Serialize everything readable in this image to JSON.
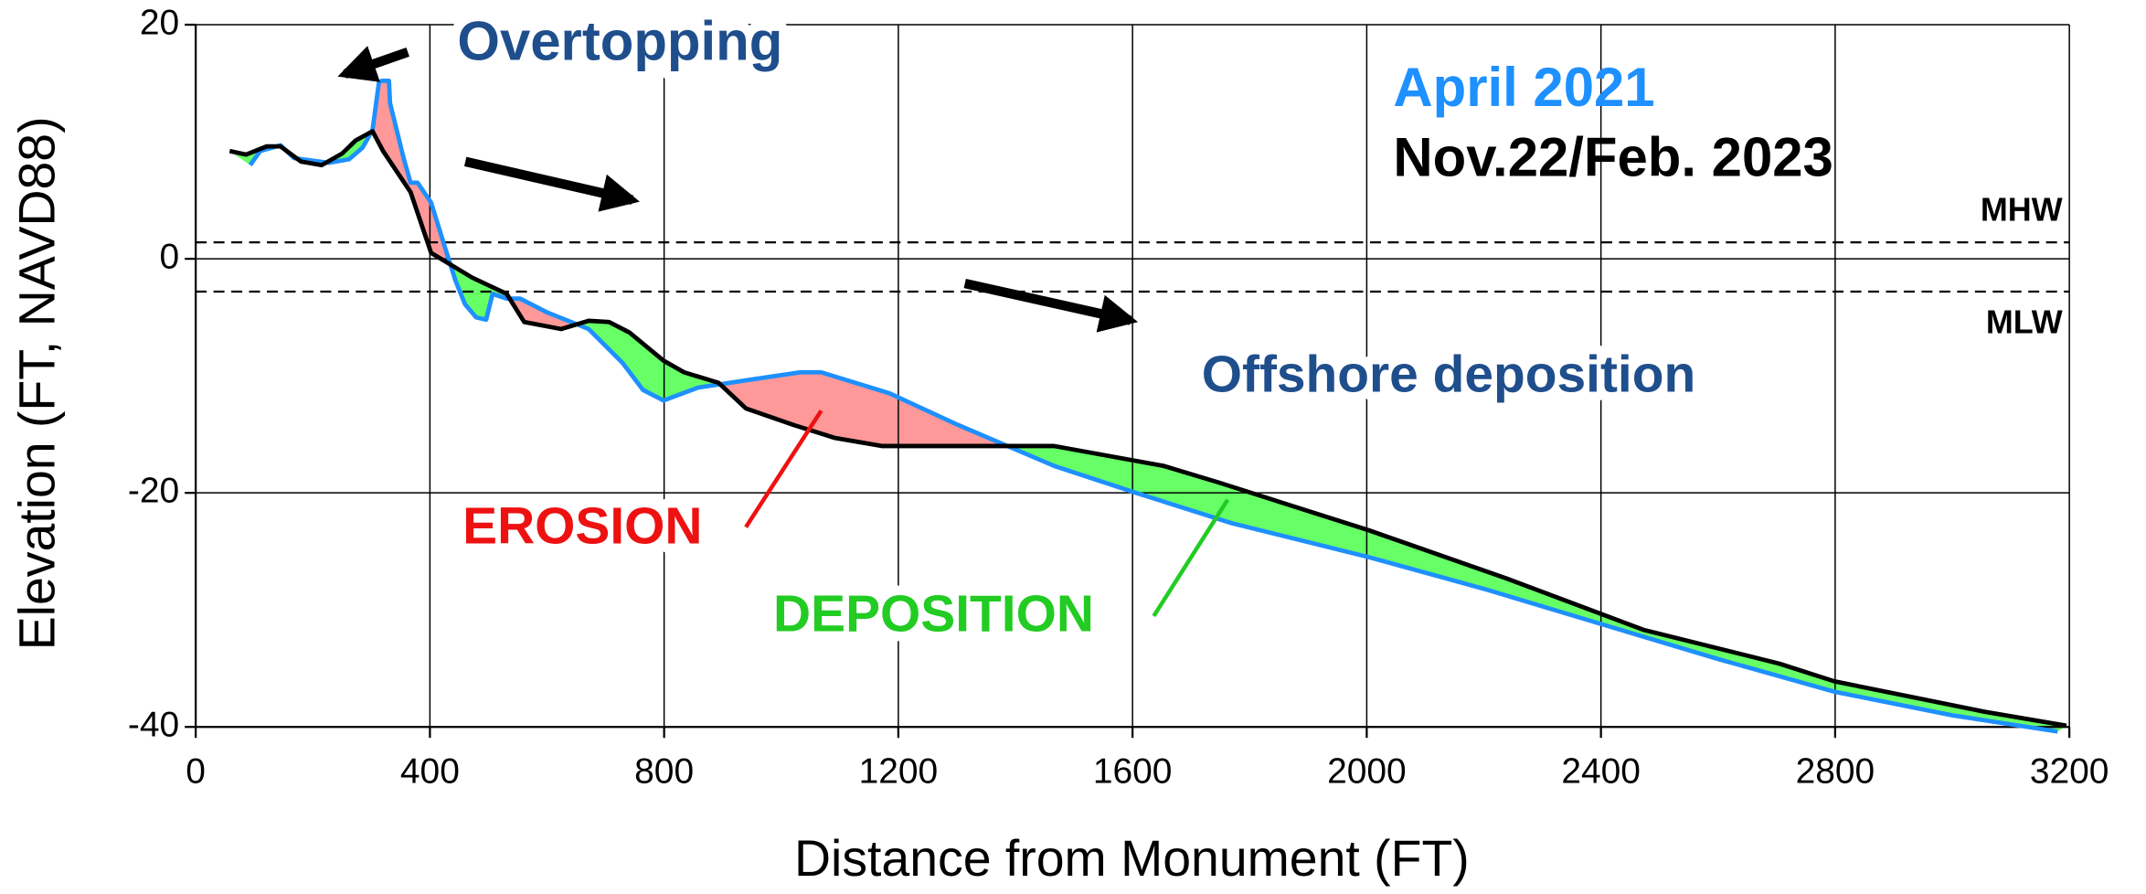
{
  "chart_data": {
    "type": "line",
    "xlabel": "Distance from Monument (FT)",
    "ylabel": "Elevation (FT, NAVD88)",
    "xlim": [
      0,
      3200
    ],
    "xticks": [
      0,
      400,
      800,
      1200,
      1600,
      2000,
      2400,
      2800,
      3200
    ],
    "ylim": [
      -40,
      20
    ],
    "yticks": [
      -40,
      -20,
      0,
      20
    ],
    "grid": true,
    "series": [
      {
        "name": "April 2021",
        "color": "#1e90ff",
        "x": [
          93,
          110,
          145,
          168,
          227,
          262,
          285,
          302,
          313,
          318,
          330,
          332,
          355,
          367,
          379,
          402,
          425,
          444,
          460,
          479,
          496,
          507,
          531,
          554,
          601,
          671,
          729,
          764,
          799,
          858,
          951,
          1033,
          1068,
          1185,
          1302,
          1466,
          1606,
          1770,
          2004,
          2200,
          2400,
          2600,
          2800,
          3000,
          3180
        ],
        "values": [
          8,
          9.2,
          9.7,
          8.6,
          8.2,
          8.5,
          9.5,
          11,
          15.1,
          15.2,
          15.2,
          13.3,
          8.6,
          6.5,
          6.5,
          4.8,
          1.1,
          -1.9,
          -3.9,
          -5,
          -5.2,
          -3,
          -3.4,
          -3.4,
          -4.6,
          -6,
          -8.9,
          -11.2,
          -12.1,
          -11,
          -10.3,
          -9.7,
          -9.7,
          -11.5,
          -14.2,
          -17.7,
          -20,
          -22.6,
          -25.5,
          -28.2,
          -31.2,
          -34.2,
          -37,
          -39,
          -40.4
        ]
      },
      {
        "name": "Nov.22/Feb. 2023",
        "color": "#000000",
        "x": [
          58,
          86,
          121,
          145,
          180,
          215,
          250,
          273,
          302,
          320,
          367,
          402,
          472,
          531,
          561,
          624,
          671,
          706,
          741,
          799,
          834,
          893,
          940,
          1021,
          1091,
          1173,
          1466,
          1653,
          1746,
          2004,
          2238,
          2472,
          2705,
          2799,
          3055,
          3195
        ],
        "values": [
          9.2,
          8.9,
          9.6,
          9.6,
          8.3,
          8,
          9,
          10.1,
          10.9,
          9.2,
          5.7,
          0.5,
          -1.6,
          -3,
          -5.4,
          -6,
          -5.3,
          -5.4,
          -6.3,
          -8.7,
          -9.7,
          -10.6,
          -12.8,
          -14.2,
          -15.3,
          -16,
          -16,
          -17.7,
          -19.1,
          -23.2,
          -27.3,
          -31.7,
          -34.6,
          -36.1,
          -38.7,
          -39.9
        ]
      }
    ],
    "deposition_color": "#66ff66",
    "erosion_color": "#ff9999",
    "reference_lines": [
      {
        "label": "MHW",
        "value": 1.4
      },
      {
        "label": "MLW",
        "value": -2.8
      }
    ],
    "annotations": [
      {
        "text": "Overtopping",
        "color": "#1f4e8c"
      },
      {
        "text": "Offshore deposition",
        "color": "#1f4e8c"
      },
      {
        "text": "EROSION",
        "color": "#ee1111"
      },
      {
        "text": "DEPOSITION",
        "color": "#22cc22"
      }
    ]
  }
}
